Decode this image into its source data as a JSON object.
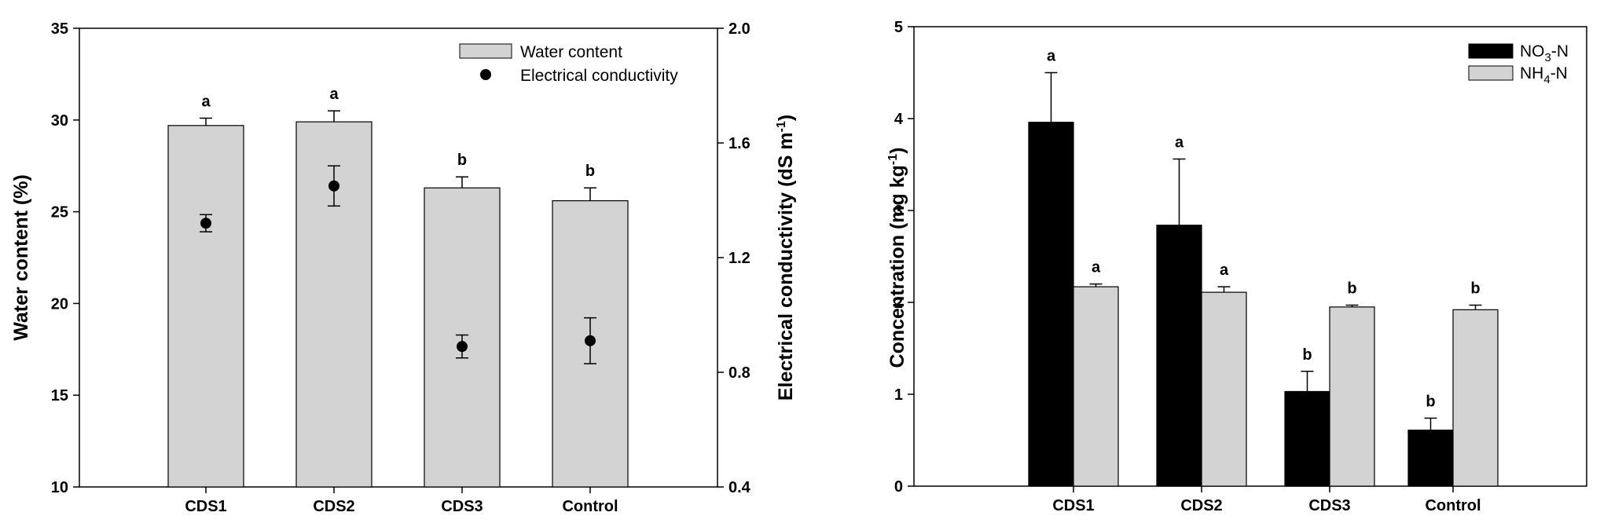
{
  "chart_data": [
    {
      "type": "bar",
      "categories": [
        "CDS1",
        "CDS2",
        "CDS3",
        "Control"
      ],
      "series": [
        {
          "name": "Water content",
          "kind": "bar",
          "axis": "left",
          "values": [
            29.7,
            29.9,
            26.3,
            25.6
          ],
          "errors": [
            0.4,
            0.6,
            0.6,
            0.7
          ],
          "letters": [
            "a",
            "a",
            "b",
            "b"
          ],
          "color": "#d3d3d3"
        },
        {
          "name": "Electrical conductivity",
          "kind": "scatter",
          "axis": "right",
          "values": [
            1.32,
            1.45,
            0.89,
            0.91
          ],
          "errors": [
            0.03,
            0.07,
            0.04,
            0.08
          ],
          "color": "#000000"
        }
      ],
      "ylabel": "Water content (%)",
      "ylim": [
        10,
        35
      ],
      "yticks": [
        "10",
        "15",
        "20",
        "25",
        "30",
        "35"
      ],
      "y2label_main": "Electrical conductivity (dS m",
      "y2label_sup": "-1",
      "y2label_end": ")",
      "y2lim": [
        0.4,
        2.0
      ],
      "y2ticks": [
        "0.4",
        "0.8",
        "1.2",
        "1.6",
        "2.0"
      ],
      "legend_position": "top-right",
      "grid": false
    },
    {
      "type": "bar",
      "categories": [
        "CDS1",
        "CDS2",
        "CDS3",
        "Control"
      ],
      "series": [
        {
          "name": "NO3-N",
          "legend_main": "NO",
          "legend_sub": "3",
          "legend_end": "-N",
          "values": [
            3.96,
            2.84,
            1.03,
            0.61
          ],
          "errors": [
            0.54,
            0.72,
            0.22,
            0.13
          ],
          "letters": [
            "a",
            "a",
            "b",
            "b"
          ],
          "color": "#000000"
        },
        {
          "name": "NH4-N",
          "legend_main": "NH",
          "legend_sub": "4",
          "legend_end": "-N",
          "values": [
            2.17,
            2.11,
            1.95,
            1.92
          ],
          "errors": [
            0.03,
            0.06,
            0.02,
            0.05
          ],
          "letters": [
            "a",
            "a",
            "b",
            "b"
          ],
          "color": "#d3d3d3"
        }
      ],
      "ylabel_main": "Concentration (mg kg",
      "ylabel_sup": "-1",
      "ylabel_end": ")",
      "ylim": [
        0,
        5
      ],
      "yticks": [
        "0",
        "1",
        "2",
        "3",
        "4",
        "5"
      ],
      "legend_position": "top-right",
      "grid": false
    }
  ]
}
